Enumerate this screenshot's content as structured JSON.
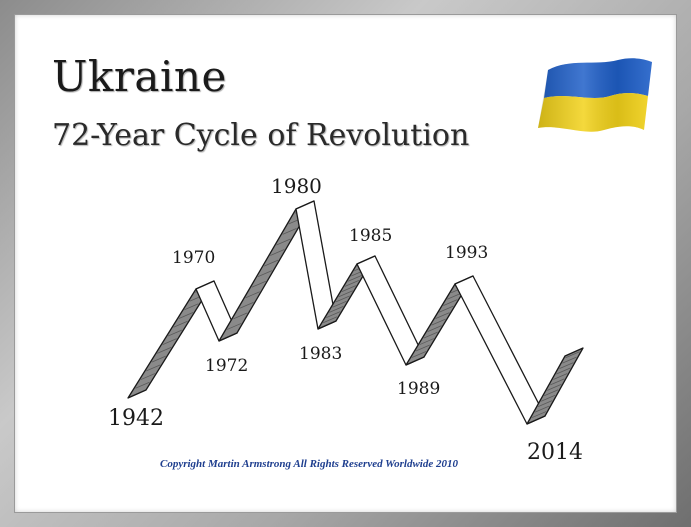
{
  "title": "Ukraine",
  "subtitle": "72-Year Cycle of Revolution",
  "flag_colors": {
    "top": "#1f5fc8",
    "bottom": "#f2d21a"
  },
  "ribbon_colors": {
    "up": "#8a8a8a",
    "down": "#ffffff",
    "outline": "#1a1a1a"
  },
  "years": {
    "y1942": "1942",
    "y1970": "1970",
    "y1972": "1972",
    "y1980": "1980",
    "y1983": "1983",
    "y1985": "1985",
    "y1989": "1989",
    "y1993": "1993",
    "y2014": "2014"
  },
  "copyright": "Copyright Martin Armstrong All Rights Reserved Worldwide 2010"
}
